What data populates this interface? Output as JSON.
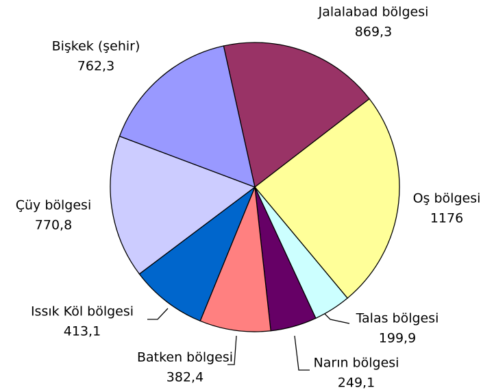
{
  "chart_data": {
    "type": "pie",
    "categories": [
      "Jalalabad bölgesi",
      "Oş bölgesi",
      "Talas bölgesi",
      "Narın bölgesi",
      "Batken bölgesi",
      "Issık Köl bölgesi",
      "Çüy bölgesi",
      "Bişkek (şehir)"
    ],
    "values": [
      869.3,
      1176,
      199.9,
      249.1,
      382.4,
      413.1,
      770.8,
      762.3
    ],
    "value_labels": [
      "869,3",
      "1176",
      "199,9",
      "249,1",
      "382,4",
      "413,1",
      "770,8",
      "762,3"
    ],
    "colors": [
      "#993366",
      "#ffff99",
      "#ccffff",
      "#660066",
      "#ff8080",
      "#0066cc",
      "#ccccff",
      "#9999ff"
    ]
  }
}
